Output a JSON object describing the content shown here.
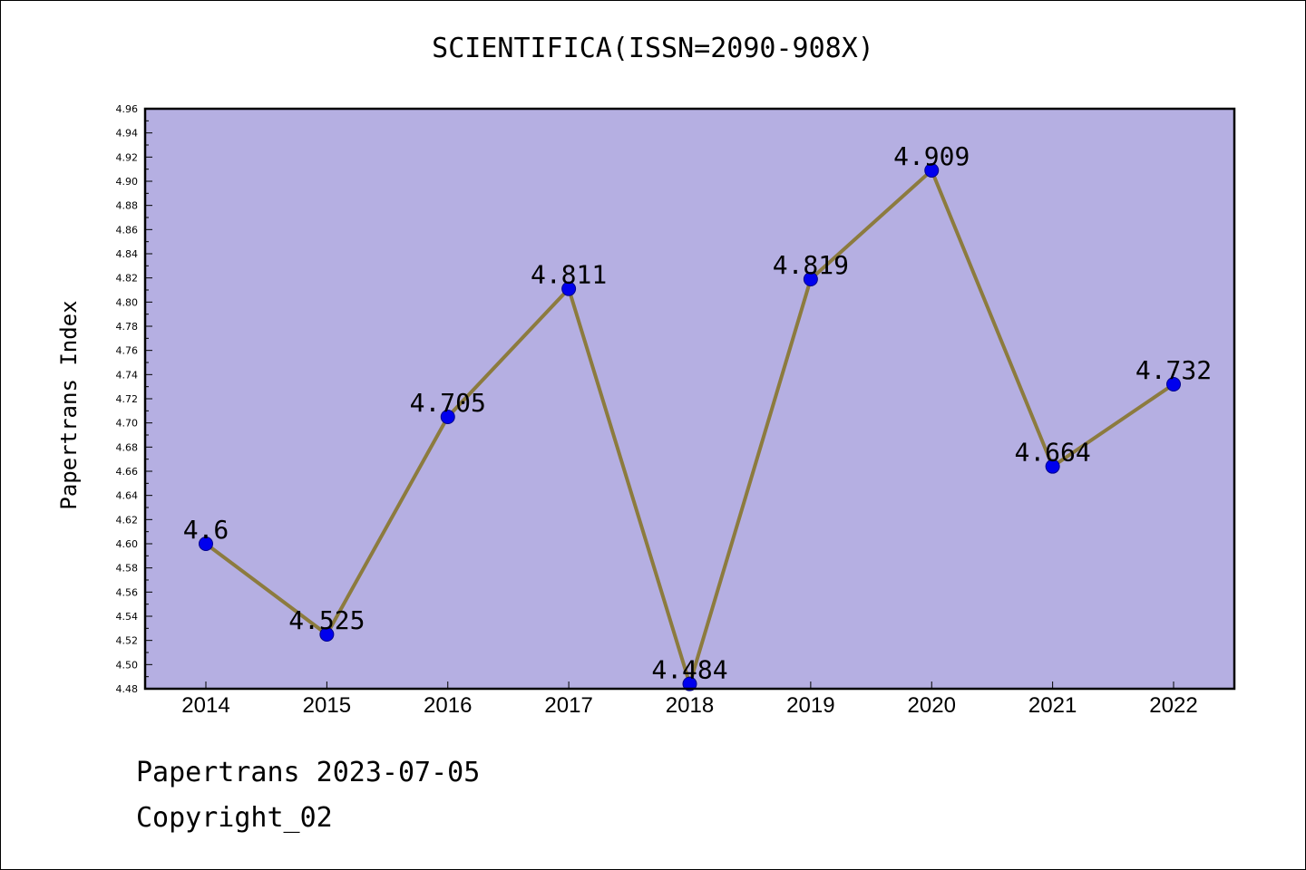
{
  "footer": {
    "date_line": "Papertrans 2023-07-05",
    "copyright_line": "Copyright_02"
  },
  "colors": {
    "plot_background": "#b5afe2",
    "line": "#8c7b3e",
    "marker": "#0000ee",
    "marker_edge": "#00008b",
    "axis": "#000000"
  },
  "chart_data": {
    "type": "line",
    "title": "SCIENTIFICA(ISSN=2090-908X)",
    "ylabel": "Papertrans Index",
    "xlabel": "",
    "categories": [
      "2014",
      "2015",
      "2016",
      "2017",
      "2018",
      "2019",
      "2020",
      "2021",
      "2022"
    ],
    "series": [
      {
        "values": [
          4.6,
          4.525,
          4.705,
          4.811,
          4.484,
          4.819,
          4.909,
          4.664,
          4.732
        ],
        "labels": [
          "4.6",
          "4.525",
          "4.705",
          "4.811",
          "4.484",
          "4.819",
          "4.909",
          "4.664",
          "4.732"
        ]
      }
    ],
    "ylim": [
      4.48,
      4.96
    ],
    "yticks": [
      "4.48",
      "4.50",
      "4.52",
      "4.54",
      "4.56",
      "4.58",
      "4.60",
      "4.62",
      "4.64",
      "4.66",
      "4.68",
      "4.70",
      "4.72",
      "4.74",
      "4.76",
      "4.78",
      "4.80",
      "4.82",
      "4.84",
      "4.86",
      "4.88",
      "4.90",
      "4.92",
      "4.94",
      "4.96"
    ],
    "grid": false,
    "legend": "none"
  }
}
